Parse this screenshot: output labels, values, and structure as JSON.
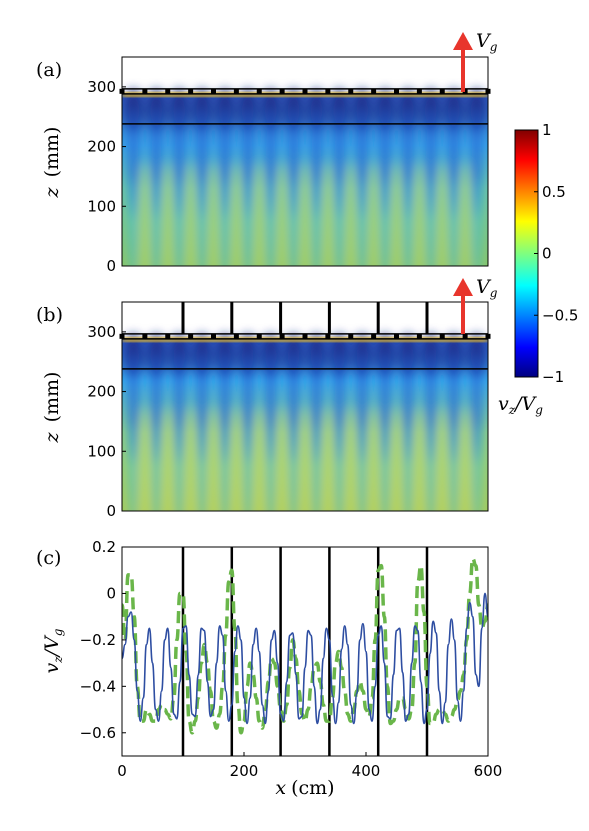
{
  "colors": {
    "blue_series": "#2e4ea2",
    "green_series": "#6ab64a",
    "arrow": "#e8352c"
  },
  "chart_data": [
    {
      "panel": "(a)",
      "type": "heatmap",
      "xlim": [
        0,
        600
      ],
      "ylim": [
        0,
        350
      ],
      "yticks": [
        "0",
        "100",
        "200",
        "300"
      ],
      "ylabel_main": "z",
      "ylabel_unit": "(mm)",
      "annotation_main": "V",
      "annotation_sub": "g",
      "grid_plate_z": 290,
      "line_z": 238,
      "plumes": 16,
      "grid_bars": 0
    },
    {
      "panel": "(b)",
      "type": "heatmap",
      "xlim": [
        0,
        600
      ],
      "ylim": [
        0,
        350
      ],
      "yticks": [
        "0",
        "100",
        "200",
        "300"
      ],
      "ylabel_main": "z",
      "ylabel_unit": "(mm)",
      "annotation_main": "V",
      "annotation_sub": "g",
      "grid_plate_z": 290,
      "line_z": 238,
      "plumes": 16,
      "grid_bars_x": [
        100,
        180,
        260,
        340,
        420,
        500
      ]
    },
    {
      "panel": "colorbar",
      "type": "colorbar",
      "range": [
        -1,
        1
      ],
      "ticks": [
        "1",
        "0.5",
        "0",
        "−0.5",
        "−1"
      ],
      "label_main": "v",
      "label_sub1": "z",
      "label_slash": "/V",
      "label_sub2": "g"
    },
    {
      "panel": "(c)",
      "type": "line",
      "xlim": [
        0,
        600
      ],
      "ylim": [
        -0.7,
        0.2
      ],
      "xticks": [
        "0",
        "200",
        "400",
        "600"
      ],
      "yticks": [
        "−0.6",
        "−0.4",
        "−0.2",
        "0",
        "0.2"
      ],
      "xlabel_main": "x",
      "xlabel_unit": "(cm)",
      "ylabel_main": "v",
      "ylabel_sub1": "z",
      "ylabel_slash": "/V",
      "ylabel_sub2": "g",
      "vlines_x": [
        100,
        180,
        260,
        340,
        420,
        500
      ],
      "series": [
        {
          "style": "solid",
          "x": [
            0,
            5,
            10,
            15,
            20,
            25,
            30,
            35,
            40,
            45,
            50,
            55,
            60,
            65,
            70,
            75,
            80,
            85,
            90,
            95,
            100,
            105,
            110,
            115,
            120,
            125,
            130,
            135,
            140,
            145,
            150,
            155,
            160,
            165,
            170,
            175,
            180,
            185,
            190,
            195,
            200,
            205,
            210,
            215,
            220,
            225,
            230,
            235,
            240,
            245,
            250,
            255,
            260,
            265,
            270,
            275,
            280,
            285,
            290,
            295,
            300,
            305,
            310,
            315,
            320,
            325,
            330,
            335,
            340,
            345,
            350,
            355,
            360,
            365,
            370,
            375,
            380,
            385,
            390,
            395,
            400,
            405,
            410,
            415,
            420,
            425,
            430,
            435,
            440,
            445,
            450,
            455,
            460,
            465,
            470,
            475,
            480,
            485,
            490,
            495,
            500,
            505,
            510,
            515,
            520,
            525,
            530,
            535,
            540,
            545,
            550,
            555,
            560,
            565,
            570,
            575,
            580,
            585,
            590,
            595,
            600
          ],
          "y": [
            -0.28,
            -0.22,
            -0.1,
            -0.08,
            -0.2,
            -0.42,
            -0.55,
            -0.45,
            -0.22,
            -0.15,
            -0.3,
            -0.5,
            -0.55,
            -0.42,
            -0.2,
            -0.15,
            -0.32,
            -0.52,
            -0.54,
            -0.38,
            -0.15,
            -0.14,
            -0.35,
            -0.52,
            -0.53,
            -0.35,
            -0.15,
            -0.16,
            -0.38,
            -0.53,
            -0.5,
            -0.3,
            -0.14,
            -0.18,
            -0.42,
            -0.55,
            -0.48,
            -0.25,
            -0.14,
            -0.2,
            -0.45,
            -0.56,
            -0.45,
            -0.22,
            -0.15,
            -0.25,
            -0.48,
            -0.56,
            -0.42,
            -0.2,
            -0.16,
            -0.3,
            -0.52,
            -0.55,
            -0.38,
            -0.18,
            -0.17,
            -0.35,
            -0.54,
            -0.53,
            -0.32,
            -0.16,
            -0.18,
            -0.4,
            -0.56,
            -0.5,
            -0.28,
            -0.15,
            -0.2,
            -0.44,
            -0.56,
            -0.47,
            -0.24,
            -0.14,
            -0.22,
            -0.48,
            -0.56,
            -0.43,
            -0.2,
            -0.13,
            -0.25,
            -0.5,
            -0.55,
            -0.4,
            -0.18,
            -0.14,
            -0.3,
            -0.53,
            -0.54,
            -0.35,
            -0.16,
            -0.15,
            -0.34,
            -0.55,
            -0.52,
            -0.3,
            -0.14,
            -0.16,
            -0.38,
            -0.56,
            -0.5,
            -0.26,
            -0.12,
            -0.17,
            -0.42,
            -0.56,
            -0.47,
            -0.22,
            -0.11,
            -0.2,
            -0.46,
            -0.55,
            -0.42,
            -0.15,
            -0.04,
            -0.1,
            -0.35,
            -0.4,
            -0.15,
            0.0,
            -0.1
          ]
        },
        {
          "style": "dashed",
          "x": [
            0,
            5,
            10,
            15,
            20,
            25,
            30,
            35,
            40,
            45,
            50,
            55,
            60,
            65,
            70,
            75,
            80,
            85,
            90,
            95,
            100,
            105,
            110,
            115,
            120,
            125,
            130,
            135,
            140,
            145,
            150,
            155,
            160,
            165,
            170,
            175,
            180,
            185,
            190,
            195,
            200,
            205,
            210,
            215,
            220,
            225,
            230,
            235,
            240,
            245,
            250,
            255,
            260,
            265,
            270,
            275,
            280,
            285,
            290,
            295,
            300,
            305,
            310,
            315,
            320,
            325,
            330,
            335,
            340,
            345,
            350,
            355,
            360,
            365,
            370,
            375,
            380,
            385,
            390,
            395,
            400,
            405,
            410,
            415,
            420,
            425,
            430,
            435,
            440,
            445,
            450,
            455,
            460,
            465,
            470,
            475,
            480,
            485,
            490,
            495,
            500,
            505,
            510,
            515,
            520,
            525,
            530,
            535,
            540,
            545,
            550,
            555,
            560,
            565,
            570,
            575,
            580,
            585,
            590,
            595,
            600
          ],
          "y": [
            -0.05,
            -0.2,
            0.08,
            0.08,
            -0.1,
            -0.4,
            -0.55,
            -0.55,
            -0.5,
            -0.52,
            -0.55,
            -0.55,
            -0.5,
            -0.48,
            -0.5,
            -0.52,
            -0.54,
            -0.45,
            -0.2,
            0.0,
            0.0,
            -0.25,
            -0.55,
            -0.6,
            -0.55,
            -0.45,
            -0.3,
            -0.22,
            -0.3,
            -0.42,
            -0.55,
            -0.58,
            -0.52,
            -0.4,
            -0.18,
            0.05,
            0.1,
            -0.15,
            -0.48,
            -0.6,
            -0.55,
            -0.4,
            -0.3,
            -0.35,
            -0.45,
            -0.55,
            -0.58,
            -0.5,
            -0.38,
            -0.28,
            -0.3,
            -0.4,
            -0.5,
            -0.55,
            -0.48,
            -0.32,
            -0.2,
            -0.28,
            -0.42,
            -0.52,
            -0.55,
            -0.5,
            -0.4,
            -0.32,
            -0.3,
            -0.38,
            -0.48,
            -0.55,
            -0.55,
            -0.45,
            -0.3,
            -0.25,
            -0.32,
            -0.42,
            -0.52,
            -0.55,
            -0.5,
            -0.42,
            -0.38,
            -0.42,
            -0.5,
            -0.53,
            -0.45,
            -0.2,
            0.1,
            0.12,
            -0.1,
            -0.4,
            -0.56,
            -0.55,
            -0.5,
            -0.45,
            -0.45,
            -0.5,
            -0.54,
            -0.5,
            -0.3,
            0.05,
            0.12,
            -0.08,
            -0.4,
            -0.56,
            -0.56,
            -0.52,
            -0.5,
            -0.5,
            -0.52,
            -0.55,
            -0.53,
            -0.5,
            -0.46,
            -0.42,
            -0.35,
            -0.2,
            0.0,
            0.15,
            0.12,
            -0.05,
            -0.15,
            -0.12,
            -0.05
          ]
        }
      ]
    }
  ]
}
